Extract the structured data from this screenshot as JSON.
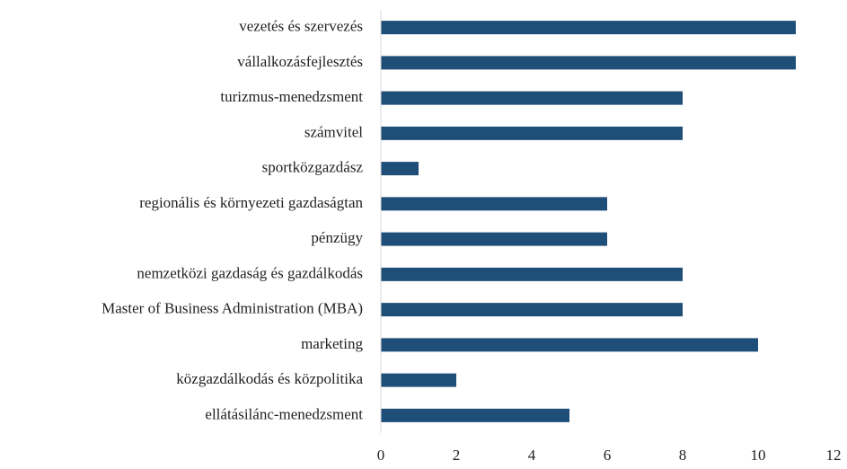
{
  "chart_data": {
    "type": "barh",
    "categories": [
      "vezetés és szervezés",
      "vállalkozásfejlesztés",
      "turizmus-menedzsment",
      "számvitel",
      "sportközgazdász",
      "regionális és környezeti gazdaságtan",
      "pénzügy",
      "nemzetközi gazdaság és gazdálkodás",
      "Master of Business Administration (MBA)",
      "marketing",
      "közgazdálkodás és közpolitika",
      "ellátásilánc-menedzsment"
    ],
    "values": [
      11,
      11,
      8,
      8,
      1,
      6,
      6,
      8,
      8,
      10,
      2,
      5
    ],
    "color": "#1f4e79",
    "xlim": [
      0,
      12
    ],
    "xticks": [
      0,
      2,
      4,
      6,
      8,
      10,
      12
    ],
    "grid": false
  }
}
